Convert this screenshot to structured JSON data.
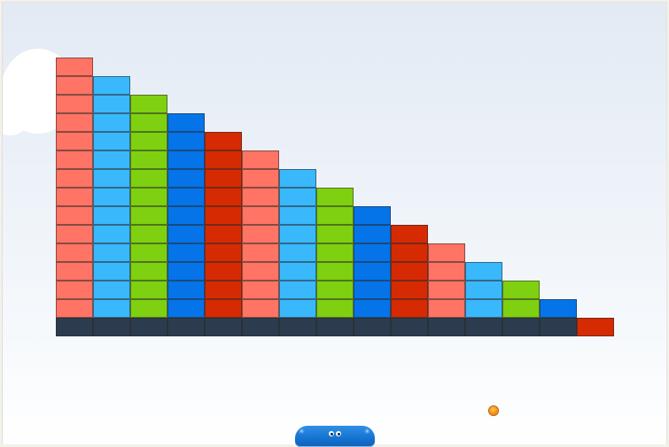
{
  "game": {
    "palette": {
      "salmon": "#ff7464",
      "sky": "#3ab8fc",
      "lime": "#7fd010",
      "blue": "#0574e8",
      "red": "#d62a02",
      "base": "#2c3c4e"
    },
    "brick_columns": [
      {
        "color": "salmon",
        "stack": 14
      },
      {
        "color": "sky",
        "stack": 13
      },
      {
        "color": "lime",
        "stack": 12
      },
      {
        "color": "blue",
        "stack": 11
      },
      {
        "color": "red",
        "stack": 10
      },
      {
        "color": "salmon",
        "stack": 9
      },
      {
        "color": "sky",
        "stack": 8
      },
      {
        "color": "lime",
        "stack": 7
      },
      {
        "color": "blue",
        "stack": 6
      },
      {
        "color": "red",
        "stack": 5
      },
      {
        "color": "salmon",
        "stack": 4
      },
      {
        "color": "sky",
        "stack": 3
      },
      {
        "color": "lime",
        "stack": 2
      },
      {
        "color": "blue",
        "stack": 1
      },
      {
        "color": "red",
        "stack": 0
      }
    ],
    "base_row": [
      "base",
      "base",
      "base",
      "base",
      "base",
      "base",
      "base",
      "base",
      "base",
      "base",
      "base",
      "base",
      "base",
      "base",
      "red"
    ],
    "paddle_icon": "smiling-blue-paddle",
    "ball_icon": "orange-ball"
  }
}
